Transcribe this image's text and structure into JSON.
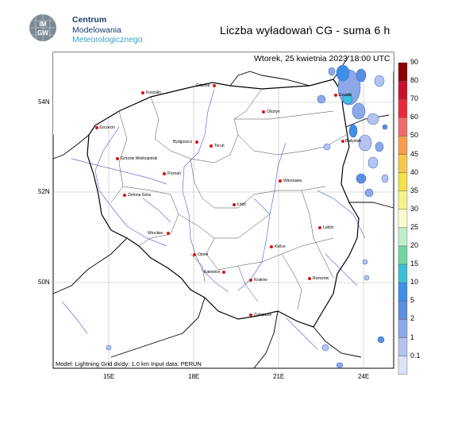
{
  "header": {
    "org_line1": "Centrum",
    "org_line2": "Modelowania",
    "org_line3": "Meteorologicznego",
    "logo_text_top": "IMGW",
    "title": "Liczba wyładowań CG - suma 6 h"
  },
  "map": {
    "datetime": "Wtorek, 25 kwietnia 2023 18:00 UTC",
    "model_info": "Model: Lightning   Grid dx/dy: 1.0 km   Input data: PERUN",
    "lon_ticks": [
      "15E",
      "18E",
      "21E",
      "24E"
    ],
    "lat_ticks": [
      "54N",
      "52N",
      "50N"
    ],
    "cities": [
      {
        "name": "Gdańsk"
      },
      {
        "name": "Koszalin"
      },
      {
        "name": "Olsztyn"
      },
      {
        "name": "Suwałki"
      },
      {
        "name": "Szczecin"
      },
      {
        "name": "Bydgoszcz"
      },
      {
        "name": "Toruń"
      },
      {
        "name": "Białystok"
      },
      {
        "name": "Gorzów Wielkopolski"
      },
      {
        "name": "Poznań"
      },
      {
        "name": "Warszawa"
      },
      {
        "name": "Zielona Góra"
      },
      {
        "name": "Łódź"
      },
      {
        "name": "Lublin"
      },
      {
        "name": "Wrocław"
      },
      {
        "name": "Kielce"
      },
      {
        "name": "Opole"
      },
      {
        "name": "Katowice"
      },
      {
        "name": "Kraków"
      },
      {
        "name": "Rzeszów"
      },
      {
        "name": "Zakopane"
      }
    ]
  },
  "colorbar": {
    "levels": [
      "90",
      "80",
      "70",
      "60",
      "50",
      "45",
      "40",
      "35",
      "30",
      "25",
      "20",
      "15",
      "10",
      "5",
      "2",
      "1",
      "0.1"
    ],
    "colors": [
      "#8b0000",
      "#c8102e",
      "#e8283c",
      "#f26b6b",
      "#f79e4f",
      "#f7c84a",
      "#f5e04a",
      "#f8f28c",
      "#fbfbd0",
      "#bfefc7",
      "#6fd6a4",
      "#3cc0d8",
      "#3f8fe6",
      "#5c8ee0",
      "#8da8e6",
      "#b5c3ee",
      "#dbe3f7"
    ]
  }
}
